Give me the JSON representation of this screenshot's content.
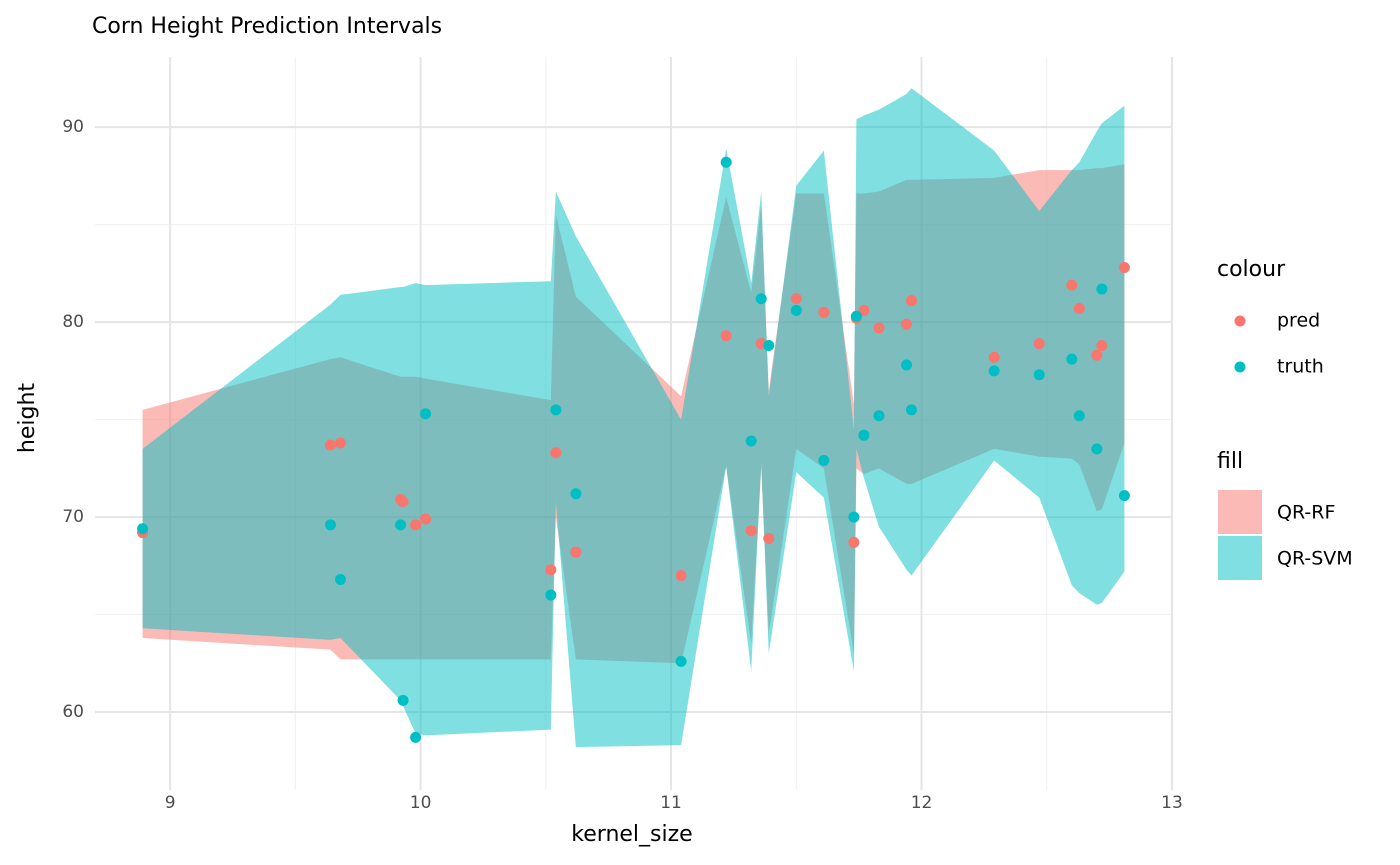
{
  "chart_data": {
    "type": "ribbon",
    "title": "Corn Height Prediction Intervals",
    "x_label": "kernel_size",
    "y_label": "height",
    "xlim": [
      8.7,
      13.0
    ],
    "ylim": [
      56.0,
      93.6
    ],
    "xticks": [
      9,
      10,
      11,
      12,
      13
    ],
    "yticks": [
      60,
      70,
      80,
      90
    ],
    "grid": true,
    "x": [
      8.89,
      9.64,
      9.68,
      9.92,
      9.93,
      9.98,
      10.02,
      10.52,
      10.54,
      10.62,
      11.04,
      11.22,
      11.32,
      11.36,
      11.39,
      11.5,
      11.61,
      11.73,
      11.74,
      11.77,
      11.83,
      11.94,
      11.96,
      12.29,
      12.47,
      12.6,
      12.63,
      12.7,
      12.72,
      12.81
    ],
    "fill_title": "fill",
    "ribbons": [
      {
        "name": "QR-RF",
        "color": "#F8766D",
        "upper": [
          75.5,
          78.1,
          78.2,
          77.2,
          77.2,
          77.2,
          77.1,
          76.0,
          85.5,
          81.3,
          76.2,
          86.4,
          81.5,
          86.0,
          76.5,
          86.6,
          86.6,
          75.8,
          86.6,
          86.6,
          86.7,
          87.3,
          87.3,
          87.4,
          87.8,
          87.8,
          87.8,
          87.9,
          87.9,
          88.1
        ],
        "lower": [
          63.8,
          63.2,
          62.7,
          62.7,
          62.7,
          62.7,
          62.7,
          62.7,
          70.0,
          62.7,
          62.5,
          72.6,
          63.5,
          72.5,
          64.0,
          73.5,
          72.5,
          63.0,
          72.5,
          72.2,
          72.5,
          71.7,
          71.7,
          73.5,
          73.1,
          73.0,
          72.7,
          70.3,
          70.4,
          73.8
        ]
      },
      {
        "name": "QR-SVM",
        "color": "#00BFC4",
        "upper": [
          73.5,
          80.9,
          81.4,
          81.8,
          81.8,
          82.0,
          81.9,
          82.1,
          86.7,
          84.4,
          75.0,
          88.9,
          82.0,
          86.7,
          76.2,
          87.0,
          88.8,
          74.5,
          90.4,
          90.6,
          90.9,
          91.7,
          92.0,
          88.8,
          85.7,
          87.8,
          88.2,
          89.8,
          90.2,
          91.1
        ],
        "lower": [
          64.3,
          63.7,
          63.8,
          60.6,
          60.3,
          58.9,
          58.8,
          59.1,
          70.8,
          58.2,
          58.3,
          72.6,
          62.1,
          72.8,
          63.0,
          72.3,
          71.0,
          62.1,
          73.5,
          72.0,
          69.5,
          67.3,
          67.0,
          72.9,
          71.0,
          66.5,
          66.1,
          65.5,
          65.6,
          67.2
        ]
      }
    ],
    "colour_title": "colour",
    "series": [
      {
        "name": "pred",
        "color": "#F8766D",
        "values": [
          69.2,
          73.7,
          73.8,
          70.9,
          70.8,
          69.6,
          69.9,
          67.3,
          73.3,
          68.2,
          67.0,
          79.3,
          69.3,
          78.9,
          68.9,
          81.2,
          80.5,
          68.7,
          80.2,
          80.6,
          79.7,
          79.9,
          81.1,
          78.2,
          78.9,
          81.9,
          80.7,
          78.3,
          78.8,
          82.8
        ]
      },
      {
        "name": "truth",
        "color": "#00BFC4",
        "values": [
          69.4,
          69.6,
          66.8,
          69.6,
          60.6,
          58.7,
          75.3,
          66.0,
          75.5,
          71.2,
          62.6,
          88.2,
          73.9,
          81.2,
          78.8,
          80.6,
          72.9,
          70.0,
          80.3,
          74.2,
          75.2,
          77.8,
          75.5,
          77.5,
          77.3,
          78.1,
          75.2,
          73.5,
          81.7,
          71.1
        ]
      }
    ]
  }
}
